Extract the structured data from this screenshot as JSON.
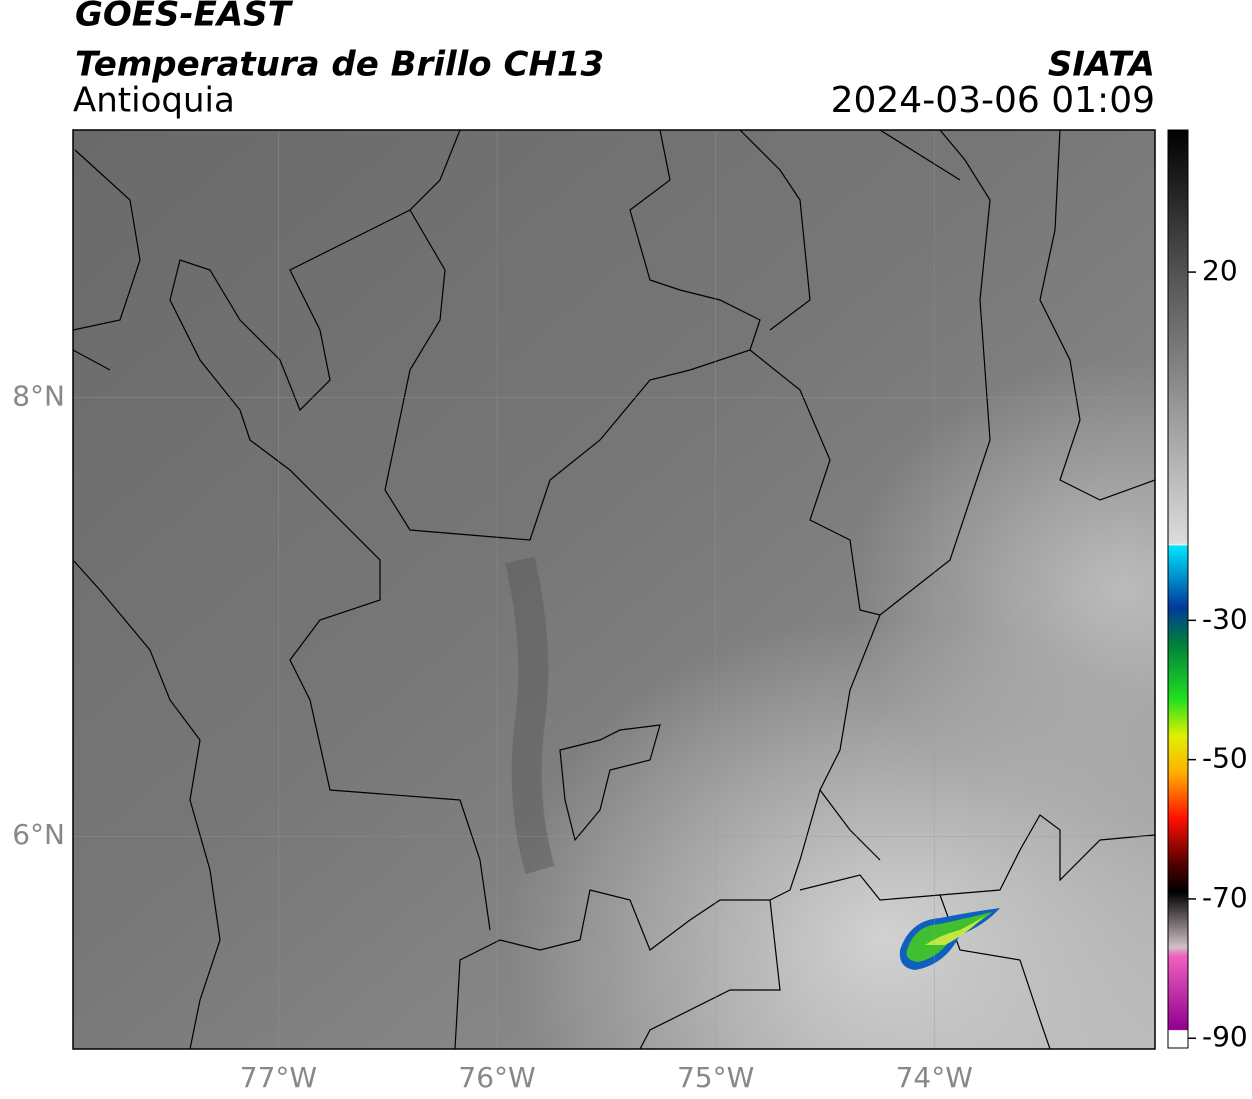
{
  "header": {
    "title": "GOES-EAST",
    "subtitle": "Temperatura de Brillo CH13",
    "region": "Antioquia",
    "source": "SIATA",
    "datetime": "2024-03-06 01:09"
  },
  "map": {
    "xlim": [
      -77.94,
      -72.99
    ],
    "ylim": [
      5.03,
      9.22
    ],
    "xticks": [
      {
        "value": -77,
        "label": "77°W"
      },
      {
        "value": -76,
        "label": "76°W"
      },
      {
        "value": -75,
        "label": "75°W"
      },
      {
        "value": -74,
        "label": "74°W"
      }
    ],
    "yticks": [
      {
        "value": 6,
        "label": "6°N"
      },
      {
        "value": 8,
        "label": "8°N"
      }
    ],
    "grid": true
  },
  "colorbar": {
    "lim": [
      -91.4,
      40.4
    ],
    "ticks": [
      20,
      -30,
      -50,
      -70,
      -90
    ]
  }
}
